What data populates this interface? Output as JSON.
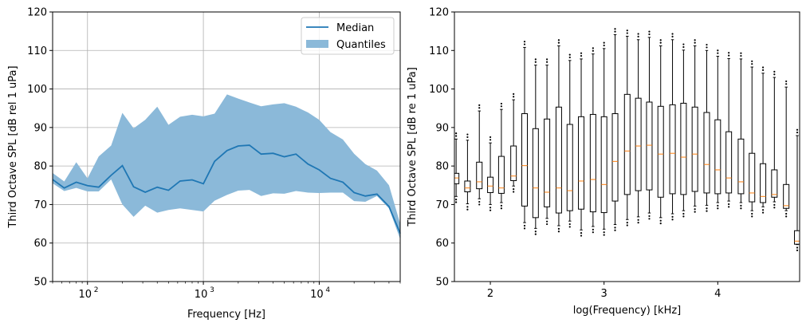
{
  "chart_data": [
    {
      "type": "line",
      "title": "",
      "xlabel": "Frequency [Hz]",
      "ylabel": "Third Octave SPL [dB rel 1 uPa]",
      "xscale": "log",
      "xlim": [
        50,
        50000
      ],
      "ylim": [
        50,
        120
      ],
      "yticks": [
        50,
        60,
        70,
        80,
        90,
        100,
        110,
        120
      ],
      "xticks": [
        {
          "value": 100,
          "base": "10",
          "exp": "2"
        },
        {
          "value": 1000,
          "base": "10",
          "exp": "3"
        },
        {
          "value": 10000,
          "base": "10",
          "exp": "4"
        }
      ],
      "grid": true,
      "legend": {
        "placement": "top-right",
        "entries": [
          "Median",
          "Quantiles"
        ]
      },
      "colors": {
        "median": "#1f77b4",
        "band": "#8bb9d9"
      },
      "x": [
        50,
        63,
        80,
        100,
        125,
        160,
        200,
        250,
        315,
        400,
        500,
        630,
        800,
        1000,
        1250,
        1600,
        2000,
        2500,
        3150,
        4000,
        5000,
        6300,
        8000,
        10000,
        12500,
        16000,
        20000,
        25000,
        31500,
        40000,
        50000
      ],
      "series": [
        {
          "name": "Median",
          "values": [
            76.5,
            74.3,
            75.8,
            74.9,
            74.5,
            77.6,
            80.1,
            74.6,
            73.2,
            74.5,
            73.7,
            76.1,
            76.4,
            75.4,
            81.2,
            84.0,
            85.2,
            85.4,
            83.1,
            83.3,
            82.4,
            83.1,
            80.5,
            79.0,
            76.8,
            75.8,
            73.1,
            72.2,
            72.7,
            69.5,
            62.5
          ]
        },
        {
          "name": "Quantiles upper",
          "values": [
            78.2,
            76.0,
            81.0,
            76.8,
            82.5,
            85.3,
            93.8,
            89.8,
            92.0,
            95.4,
            90.7,
            92.8,
            93.3,
            92.9,
            93.6,
            98.6,
            97.5,
            96.5,
            95.5,
            96.0,
            96.3,
            95.4,
            93.9,
            92.0,
            88.8,
            86.9,
            83.2,
            80.5,
            78.8,
            75.0,
            65.0
          ]
        },
        {
          "name": "Quantiles lower",
          "values": [
            75.5,
            73.5,
            74.3,
            73.4,
            73.4,
            76.5,
            70.0,
            66.8,
            69.7,
            67.9,
            68.6,
            69.0,
            68.6,
            68.2,
            71.0,
            72.5,
            73.6,
            73.8,
            72.2,
            72.9,
            72.8,
            73.5,
            73.1,
            73.0,
            73.1,
            73.1,
            70.9,
            70.7,
            72.2,
            69.0,
            61.0
          ]
        }
      ]
    },
    {
      "type": "box",
      "title": "",
      "xlabel": "log(Frequency) [kHz]",
      "ylabel": "Third Octave SPL [dB re 1 uPa]",
      "xlim": [
        1.684,
        4.72
      ],
      "ylim": [
        50,
        120
      ],
      "yticks": [
        50,
        60,
        70,
        80,
        90,
        100,
        110,
        120
      ],
      "xticks": [
        2,
        3,
        4
      ],
      "grid": false,
      "colors": {
        "box": "#000000",
        "median": "#ff7f0e"
      },
      "positions": [
        1.699,
        1.799,
        1.903,
        2.0,
        2.097,
        2.204,
        2.301,
        2.398,
        2.498,
        2.602,
        2.699,
        2.799,
        2.903,
        3.0,
        3.097,
        3.204,
        3.301,
        3.398,
        3.498,
        3.602,
        3.699,
        3.799,
        3.903,
        4.0,
        4.097,
        4.204,
        4.301,
        4.398,
        4.498,
        4.602,
        4.699
      ],
      "boxes": [
        [
          72.1,
          75.4,
          76.9,
          78.1,
          87.0
        ],
        [
          70.2,
          73.3,
          74.3,
          76.1,
          86.7
        ],
        [
          71.5,
          74.1,
          75.9,
          81.0,
          94.3
        ],
        [
          70.0,
          73.1,
          74.8,
          77.1,
          86.0
        ],
        [
          70.5,
          72.9,
          74.3,
          82.5,
          94.7
        ],
        [
          74.8,
          76.2,
          77.4,
          85.2,
          97.2
        ],
        [
          65.3,
          69.6,
          80.1,
          93.6,
          110.8
        ],
        [
          63.8,
          66.6,
          74.3,
          89.7,
          106.2
        ],
        [
          66.4,
          69.4,
          73.2,
          92.2,
          106.2
        ],
        [
          64.5,
          67.8,
          74.3,
          95.3,
          111.2
        ],
        [
          65.7,
          68.4,
          73.6,
          90.8,
          107.4
        ],
        [
          63.4,
          68.8,
          76.1,
          92.8,
          107.8
        ],
        [
          64.3,
          68.1,
          76.5,
          93.4,
          109.1
        ],
        [
          63.6,
          67.9,
          75.2,
          92.8,
          110.5
        ],
        [
          64.8,
          70.9,
          81.2,
          93.6,
          114.1
        ],
        [
          66.1,
          72.6,
          83.9,
          98.6,
          113.7
        ],
        [
          66.8,
          73.6,
          85.2,
          97.6,
          112.8
        ],
        [
          67.8,
          73.8,
          85.4,
          96.6,
          113.4
        ],
        [
          66.6,
          71.9,
          83.1,
          95.5,
          111.2
        ],
        [
          67.6,
          72.8,
          83.3,
          95.9,
          112.8
        ],
        [
          68.4,
          72.6,
          82.3,
          96.3,
          110.1
        ],
        [
          69.6,
          73.4,
          83.1,
          95.3,
          111.2
        ],
        [
          69.8,
          73.0,
          80.4,
          93.9,
          110.0
        ],
        [
          70.5,
          72.8,
          79.0,
          92.0,
          108.5
        ],
        [
          70.9,
          73.0,
          76.9,
          88.9,
          107.9
        ],
        [
          70.5,
          72.8,
          75.9,
          87.0,
          107.8
        ],
        [
          68.4,
          70.7,
          73.0,
          83.3,
          105.7
        ],
        [
          69.4,
          70.5,
          72.1,
          80.6,
          104.1
        ],
        [
          70.7,
          71.9,
          72.6,
          79.0,
          103.0
        ],
        [
          68.4,
          69.0,
          69.7,
          75.2,
          100.5
        ],
        [
          59.6,
          59.7,
          60.5,
          63.2,
          87.9
        ]
      ],
      "box_fields": [
        "whislo",
        "q1",
        "med",
        "q3",
        "whishi"
      ],
      "fliers_offset_db": [
        0.8,
        1.5
      ]
    }
  ]
}
